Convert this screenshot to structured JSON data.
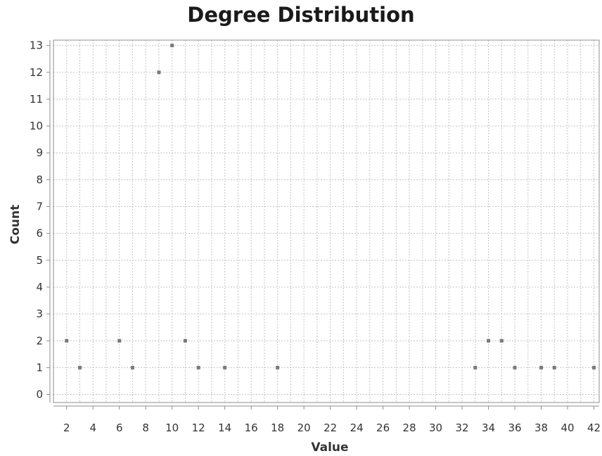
{
  "chart_data": {
    "type": "scatter",
    "title": "Degree Distribution",
    "xlabel": "Value",
    "ylabel": "Count",
    "xlim": [
      1,
      42.4
    ],
    "ylim": [
      -0.3,
      13.2
    ],
    "x_ticks": [
      2,
      4,
      6,
      8,
      10,
      12,
      14,
      16,
      18,
      20,
      22,
      24,
      26,
      28,
      30,
      32,
      34,
      36,
      38,
      40,
      42
    ],
    "y_ticks": [
      0,
      1,
      2,
      3,
      4,
      5,
      6,
      7,
      8,
      9,
      10,
      11,
      12,
      13
    ],
    "grid": true,
    "point_color": "#7a7a7a",
    "series": [
      {
        "x": [
          2,
          3,
          6,
          7,
          9,
          10,
          11,
          12,
          14,
          18,
          33,
          34,
          35,
          36,
          38,
          39,
          42
        ],
        "y": [
          2,
          1,
          2,
          1,
          12,
          13,
          2,
          1,
          1,
          1,
          1,
          2,
          2,
          1,
          1,
          1,
          1
        ]
      }
    ]
  }
}
